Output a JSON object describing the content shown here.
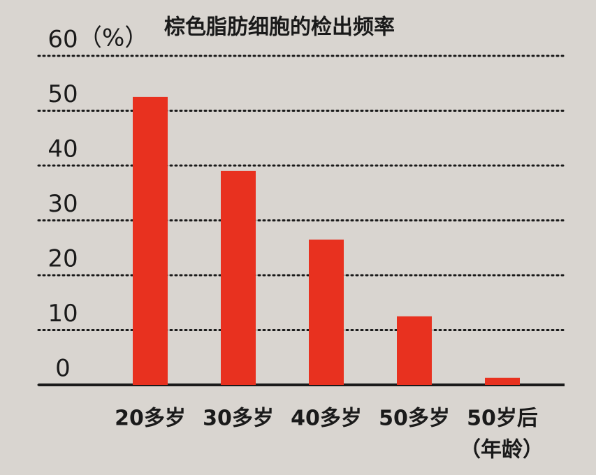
{
  "chart_data": {
    "type": "bar",
    "title": "棕色脂肪细胞的检出频率",
    "y_unit": "（%）",
    "x_label": "（年龄）",
    "categories": [
      "20多岁",
      "30多岁",
      "40多岁",
      "50多岁",
      "50岁后"
    ],
    "values": [
      52.5,
      39,
      26.5,
      12.5,
      1.3
    ],
    "color": "#e8311f",
    "ylim": [
      0,
      60
    ],
    "yticks": [
      0,
      10,
      20,
      30,
      40,
      50,
      60
    ],
    "grid": true
  }
}
